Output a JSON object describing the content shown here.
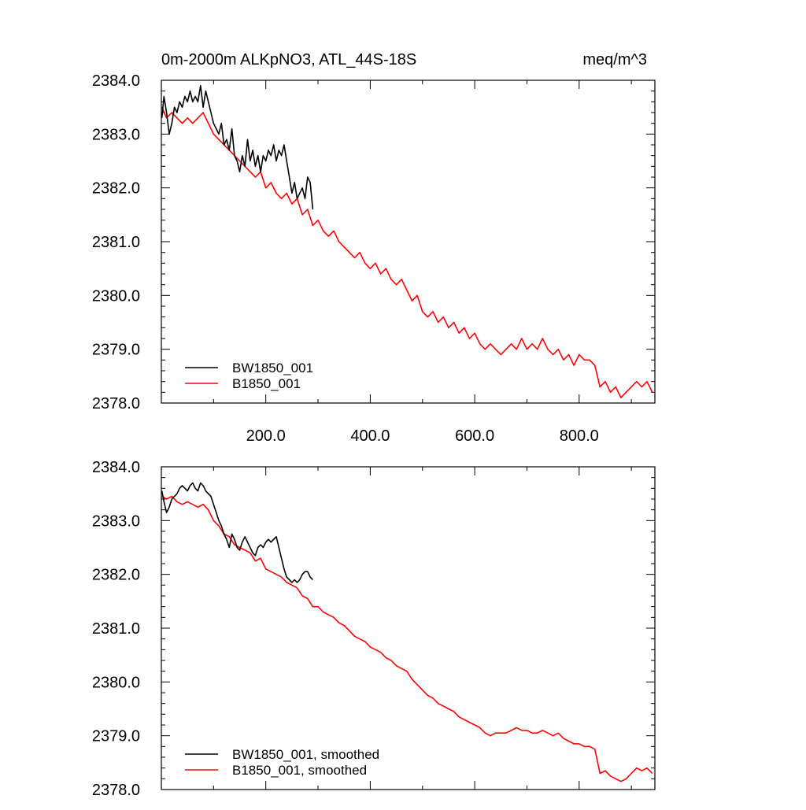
{
  "chart_data": [
    {
      "type": "line",
      "title": "0m-2000m ALKpNO3, ATL_44S-18S",
      "units": "meq/m^3",
      "xlim": [
        0,
        945
      ],
      "ylim": [
        2378.0,
        2384.0
      ],
      "x_ticks": [
        "200.0",
        "400.0",
        "600.0",
        "800.0"
      ],
      "y_ticks": [
        "2378.0",
        "2379.0",
        "2380.0",
        "2381.0",
        "2382.0",
        "2383.0",
        "2384.0"
      ],
      "legend_position": "bottom-left",
      "grid": false,
      "series": [
        {
          "name": "BW1850_001",
          "color": "#000000",
          "x": [
            1,
            5,
            10,
            15,
            20,
            25,
            30,
            35,
            40,
            45,
            50,
            55,
            60,
            65,
            70,
            75,
            80,
            85,
            90,
            95,
            100,
            105,
            110,
            115,
            120,
            125,
            130,
            135,
            140,
            145,
            150,
            155,
            160,
            165,
            170,
            175,
            180,
            185,
            190,
            195,
            200,
            205,
            210,
            215,
            220,
            225,
            230,
            235,
            240,
            245,
            250,
            255,
            260,
            265,
            270,
            275,
            280,
            285,
            290
          ],
          "y": [
            2383.3,
            2383.7,
            2383.4,
            2383.0,
            2383.2,
            2383.5,
            2383.4,
            2383.6,
            2383.5,
            2383.7,
            2383.6,
            2383.8,
            2383.6,
            2383.7,
            2383.6,
            2383.9,
            2383.5,
            2383.8,
            2383.6,
            2383.4,
            2383.2,
            2383.1,
            2383.0,
            2383.2,
            2382.8,
            2382.9,
            2382.7,
            2383.1,
            2382.6,
            2382.5,
            2382.3,
            2382.6,
            2382.4,
            2382.9,
            2382.5,
            2382.7,
            2382.4,
            2382.6,
            2382.3,
            2382.6,
            2382.5,
            2382.7,
            2382.6,
            2382.8,
            2382.5,
            2382.7,
            2382.6,
            2382.8,
            2382.5,
            2382.2,
            2381.9,
            2382.1,
            2381.8,
            2381.9,
            2382.0,
            2381.8,
            2382.2,
            2382.1,
            2381.6
          ]
        },
        {
          "name": "B1850_001",
          "color": "#ff0000",
          "x": [
            1,
            10,
            20,
            30,
            40,
            50,
            60,
            70,
            80,
            90,
            100,
            110,
            120,
            130,
            140,
            150,
            160,
            170,
            180,
            190,
            200,
            210,
            220,
            230,
            240,
            250,
            260,
            270,
            280,
            290,
            300,
            310,
            320,
            330,
            340,
            350,
            360,
            370,
            380,
            390,
            400,
            410,
            420,
            430,
            440,
            450,
            460,
            470,
            480,
            490,
            500,
            510,
            520,
            530,
            540,
            550,
            560,
            570,
            580,
            590,
            600,
            610,
            620,
            630,
            640,
            650,
            660,
            670,
            680,
            690,
            700,
            710,
            720,
            730,
            740,
            750,
            760,
            770,
            780,
            790,
            800,
            810,
            820,
            830,
            840,
            850,
            860,
            870,
            880,
            890,
            900,
            910,
            920,
            930,
            940
          ],
          "y": [
            2383.5,
            2383.3,
            2383.4,
            2383.3,
            2383.2,
            2383.3,
            2383.2,
            2383.3,
            2383.4,
            2383.2,
            2383.0,
            2382.9,
            2382.8,
            2382.7,
            2382.6,
            2382.5,
            2382.4,
            2382.3,
            2382.2,
            2382.3,
            2382.0,
            2382.1,
            2381.9,
            2381.8,
            2381.9,
            2381.7,
            2381.8,
            2381.5,
            2381.6,
            2381.3,
            2381.4,
            2381.2,
            2381.1,
            2381.2,
            2381.0,
            2380.9,
            2380.8,
            2380.7,
            2380.8,
            2380.6,
            2380.5,
            2380.6,
            2380.4,
            2380.5,
            2380.3,
            2380.2,
            2380.3,
            2380.1,
            2379.9,
            2380.0,
            2379.7,
            2379.6,
            2379.7,
            2379.5,
            2379.6,
            2379.4,
            2379.5,
            2379.3,
            2379.4,
            2379.2,
            2379.3,
            2379.1,
            2379.0,
            2379.1,
            2379.0,
            2378.9,
            2379.0,
            2379.1,
            2379.0,
            2379.2,
            2379.0,
            2379.1,
            2379.0,
            2379.2,
            2379.0,
            2378.9,
            2379.0,
            2378.8,
            2378.9,
            2378.7,
            2378.9,
            2378.8,
            2378.8,
            2378.7,
            2378.3,
            2378.4,
            2378.2,
            2378.3,
            2378.1,
            2378.2,
            2378.3,
            2378.4,
            2378.3,
            2378.4,
            2378.2
          ]
        }
      ]
    },
    {
      "type": "line",
      "title": "",
      "xlim": [
        0,
        945
      ],
      "ylim": [
        2378.0,
        2384.0
      ],
      "y_ticks": [
        "2378.0",
        "2379.0",
        "2380.0",
        "2381.0",
        "2382.0",
        "2383.0",
        "2384.0"
      ],
      "legend_position": "bottom-left",
      "grid": false,
      "series": [
        {
          "name": "BW1850_001, smoothed",
          "color": "#000000",
          "x": [
            1,
            5,
            10,
            15,
            20,
            25,
            30,
            35,
            40,
            45,
            50,
            55,
            60,
            65,
            70,
            75,
            80,
            85,
            90,
            95,
            100,
            105,
            110,
            115,
            120,
            125,
            130,
            135,
            140,
            145,
            150,
            155,
            160,
            165,
            170,
            175,
            180,
            185,
            190,
            195,
            200,
            205,
            210,
            215,
            220,
            225,
            230,
            235,
            240,
            245,
            250,
            255,
            260,
            265,
            270,
            275,
            280,
            285,
            290
          ],
          "y": [
            2383.55,
            2383.35,
            2383.15,
            2383.25,
            2383.4,
            2383.45,
            2383.5,
            2383.6,
            2383.65,
            2383.6,
            2383.55,
            2383.65,
            2383.7,
            2383.6,
            2383.55,
            2383.7,
            2383.65,
            2383.55,
            2383.5,
            2383.45,
            2383.3,
            2383.15,
            2383.0,
            2382.9,
            2382.75,
            2382.65,
            2382.5,
            2382.75,
            2382.65,
            2382.5,
            2382.45,
            2382.6,
            2382.7,
            2382.6,
            2382.5,
            2382.4,
            2382.35,
            2382.5,
            2382.55,
            2382.5,
            2382.6,
            2382.65,
            2382.6,
            2382.65,
            2382.7,
            2382.5,
            2382.3,
            2382.1,
            2381.95,
            2381.9,
            2381.85,
            2381.9,
            2381.85,
            2381.9,
            2382.0,
            2382.05,
            2382.05,
            2381.95,
            2381.9
          ]
        },
        {
          "name": "B1850_001, smoothed",
          "color": "#ff0000",
          "x": [
            1,
            10,
            20,
            30,
            40,
            50,
            60,
            70,
            80,
            90,
            100,
            110,
            120,
            130,
            140,
            150,
            160,
            170,
            180,
            190,
            200,
            210,
            220,
            230,
            240,
            250,
            260,
            270,
            280,
            290,
            300,
            310,
            320,
            330,
            340,
            350,
            360,
            370,
            380,
            390,
            400,
            410,
            420,
            430,
            440,
            450,
            460,
            470,
            480,
            490,
            500,
            510,
            520,
            530,
            540,
            550,
            560,
            570,
            580,
            590,
            600,
            610,
            620,
            630,
            640,
            650,
            660,
            670,
            680,
            690,
            700,
            710,
            720,
            730,
            740,
            750,
            760,
            770,
            780,
            790,
            800,
            810,
            820,
            830,
            840,
            850,
            860,
            870,
            880,
            890,
            900,
            910,
            920,
            930,
            940
          ],
          "y": [
            2383.45,
            2383.4,
            2383.45,
            2383.35,
            2383.3,
            2383.35,
            2383.3,
            2383.25,
            2383.3,
            2383.2,
            2383.0,
            2382.9,
            2382.75,
            2382.7,
            2382.55,
            2382.5,
            2382.45,
            2382.4,
            2382.25,
            2382.3,
            2382.1,
            2382.05,
            2382.0,
            2381.95,
            2381.85,
            2381.8,
            2381.75,
            2381.6,
            2381.55,
            2381.4,
            2381.4,
            2381.3,
            2381.25,
            2381.2,
            2381.1,
            2381.05,
            2380.95,
            2380.85,
            2380.8,
            2380.75,
            2380.65,
            2380.6,
            2380.55,
            2380.45,
            2380.4,
            2380.3,
            2380.25,
            2380.2,
            2380.05,
            2379.95,
            2379.85,
            2379.75,
            2379.7,
            2379.6,
            2379.55,
            2379.5,
            2379.45,
            2379.35,
            2379.3,
            2379.25,
            2379.2,
            2379.15,
            2379.05,
            2379.0,
            2379.05,
            2379.05,
            2379.05,
            2379.1,
            2379.15,
            2379.1,
            2379.1,
            2379.05,
            2379.05,
            2379.1,
            2379.05,
            2379.0,
            2379.05,
            2378.95,
            2378.9,
            2378.85,
            2378.85,
            2378.8,
            2378.8,
            2378.75,
            2378.3,
            2378.35,
            2378.25,
            2378.2,
            2378.15,
            2378.2,
            2378.3,
            2378.4,
            2378.35,
            2378.4,
            2378.3
          ]
        }
      ]
    }
  ]
}
